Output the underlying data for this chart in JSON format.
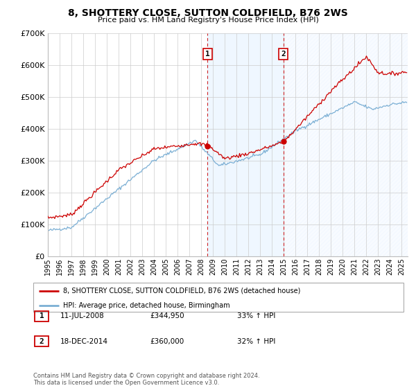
{
  "title": "8, SHOTTERY CLOSE, SUTTON COLDFIELD, B76 2WS",
  "subtitle": "Price paid vs. HM Land Registry's House Price Index (HPI)",
  "legend_line1": "8, SHOTTERY CLOSE, SUTTON COLDFIELD, B76 2WS (detached house)",
  "legend_line2": "HPI: Average price, detached house, Birmingham",
  "sale1_date": "11-JUL-2008",
  "sale1_price": 344950,
  "sale1_hpi": "33% ↑ HPI",
  "sale2_date": "18-DEC-2014",
  "sale2_price": 360000,
  "sale2_hpi": "32% ↑ HPI",
  "footnote": "Contains HM Land Registry data © Crown copyright and database right 2024.\nThis data is licensed under the Open Government Licence v3.0.",
  "hpi_color": "#7bafd4",
  "price_color": "#cc0000",
  "shading_color": "#ddeeff",
  "marker_color": "#cc0000",
  "ylim": [
    0,
    700000
  ],
  "xlim_start": 1995,
  "xlim_end": 2025.5,
  "yticks": [
    0,
    100000,
    200000,
    300000,
    400000,
    500000,
    600000,
    700000
  ],
  "xticks": [
    1995,
    1996,
    1997,
    1998,
    1999,
    2000,
    2001,
    2002,
    2003,
    2004,
    2005,
    2006,
    2007,
    2008,
    2009,
    2010,
    2011,
    2012,
    2013,
    2014,
    2015,
    2016,
    2017,
    2018,
    2019,
    2020,
    2021,
    2022,
    2023,
    2024,
    2025
  ]
}
